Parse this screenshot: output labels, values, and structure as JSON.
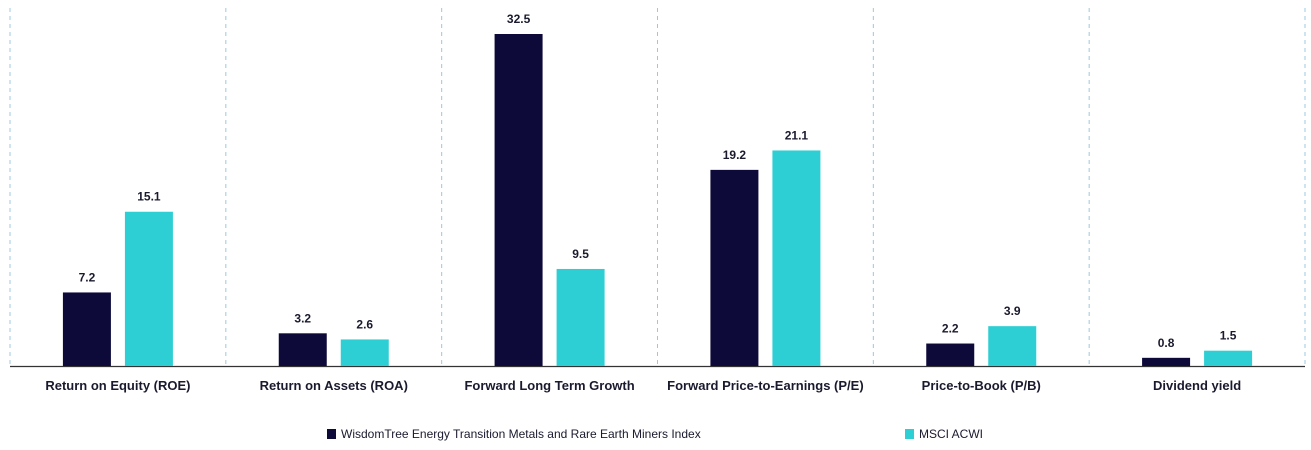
{
  "chart_data": {
    "type": "bar",
    "title": "",
    "xlabel": "",
    "ylabel": "",
    "categories": [
      "Return on Equity (ROE)",
      "Return on Assets (ROA)",
      "Forward Long Term Growth",
      "Forward Price-to-Earnings (P/E)",
      "Price-to-Book (P/B)",
      "Dividend yield"
    ],
    "series": [
      {
        "name": "WisdomTree Energy Transition Metals and Rare Earth Miners Index",
        "color": "#0d0a3a",
        "values": [
          7.2,
          3.2,
          32.5,
          19.2,
          2.2,
          0.8
        ],
        "value_labels": [
          "7.2",
          "3.2",
          "32.5",
          "19.2",
          "2.2",
          "0.8"
        ]
      },
      {
        "name": "MSCI ACWI",
        "color": "#2ecfd4",
        "values": [
          15.1,
          2.6,
          9.5,
          21.1,
          3.9,
          1.5
        ],
        "value_labels": [
          "15.1",
          "2.6",
          "9.5",
          "21.1",
          "3.9",
          "1.5"
        ]
      }
    ],
    "ylim": [
      0,
      32.5
    ],
    "y_axis_visible": false,
    "grid": "vertical dashed separators between categories",
    "legend_placement": "bottom-center",
    "separator_color": "#9cc8e0",
    "axis_color": "#333333"
  }
}
